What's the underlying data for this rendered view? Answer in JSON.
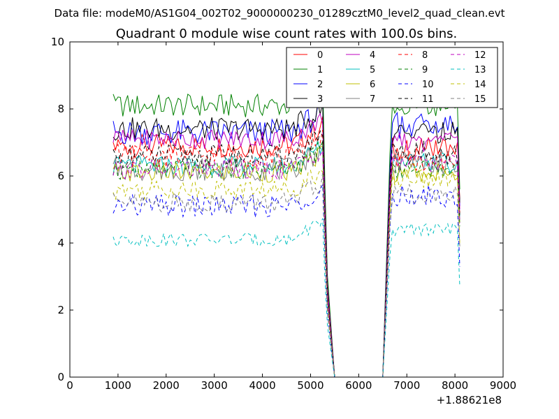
{
  "figure": {
    "suptitle": "Data file: modeM0/AS1G04_002T02_9000000230_01289cztM0_level2_quad_clean.evt",
    "x_offset_label": "+1.88621e8"
  },
  "chart_data": {
    "type": "line",
    "title": "Quadrant 0 module wise count rates with 100.0s bins.",
    "xlabel": "",
    "ylabel": "",
    "xlim": [
      0,
      9000
    ],
    "ylim": [
      0,
      10
    ],
    "x_ticks": [
      "0",
      "1000",
      "2000",
      "3000",
      "4000",
      "5000",
      "6000",
      "7000",
      "8000",
      "9000"
    ],
    "y_ticks": [
      "0",
      "2",
      "4",
      "6",
      "8",
      "10"
    ],
    "grid": false,
    "legend_position": "top-right",
    "legend_columns": 4,
    "series": [
      {
        "name": "0",
        "color": "#ff0000",
        "linestyle": "solid",
        "level_a": 6.9,
        "level_b": 6.8,
        "end": 5.3,
        "amp": 0.35
      },
      {
        "name": "1",
        "color": "#008000",
        "linestyle": "solid",
        "level_a": 8.1,
        "level_b": 8.1,
        "end": 5.6,
        "amp": 0.35
      },
      {
        "name": "2",
        "color": "#0000ff",
        "linestyle": "solid",
        "level_a": 7.3,
        "level_b": 7.5,
        "end": 5.1,
        "amp": 0.4
      },
      {
        "name": "3",
        "color": "#000000",
        "linestyle": "solid",
        "level_a": 7.4,
        "level_b": 7.3,
        "end": 5.2,
        "amp": 0.35
      },
      {
        "name": "4",
        "color": "#bf00bf",
        "linestyle": "solid",
        "level_a": 7.1,
        "level_b": 7.0,
        "end": 5.0,
        "amp": 0.3
      },
      {
        "name": "5",
        "color": "#00bfbf",
        "linestyle": "solid",
        "level_a": 6.3,
        "level_b": 6.4,
        "end": 4.8,
        "amp": 0.3
      },
      {
        "name": "6",
        "color": "#bfbf00",
        "linestyle": "solid",
        "level_a": 6.1,
        "level_b": 6.1,
        "end": 4.6,
        "amp": 0.3
      },
      {
        "name": "7",
        "color": "#808080",
        "linestyle": "solid",
        "level_a": 6.2,
        "level_b": 6.4,
        "end": 4.7,
        "amp": 0.35
      },
      {
        "name": "8",
        "color": "#ff0000",
        "linestyle": "dashed",
        "level_a": 6.6,
        "level_b": 6.5,
        "end": 4.9,
        "amp": 0.35
      },
      {
        "name": "9",
        "color": "#008000",
        "linestyle": "dashed",
        "level_a": 6.2,
        "level_b": 6.2,
        "end": 4.5,
        "amp": 0.3
      },
      {
        "name": "10",
        "color": "#0000ff",
        "linestyle": "dashed",
        "level_a": 5.1,
        "level_b": 5.4,
        "end": 3.3,
        "amp": 0.35
      },
      {
        "name": "11",
        "color": "#000000",
        "linestyle": "dashed",
        "level_a": 6.6,
        "level_b": 6.7,
        "end": 4.8,
        "amp": 0.35
      },
      {
        "name": "12",
        "color": "#bf00bf",
        "linestyle": "dashed",
        "level_a": 6.2,
        "level_b": 6.4,
        "end": 4.6,
        "amp": 0.3
      },
      {
        "name": "13",
        "color": "#00bfbf",
        "linestyle": "dashed",
        "level_a": 4.1,
        "level_b": 4.4,
        "end": 2.7,
        "amp": 0.2
      },
      {
        "name": "14",
        "color": "#bfbf00",
        "linestyle": "dashed",
        "level_a": 5.6,
        "level_b": 5.9,
        "end": 4.0,
        "amp": 0.3
      },
      {
        "name": "15",
        "color": "#808080",
        "linestyle": "dashed",
        "level_a": 5.2,
        "level_b": 5.5,
        "end": 3.9,
        "amp": 0.3
      }
    ]
  }
}
